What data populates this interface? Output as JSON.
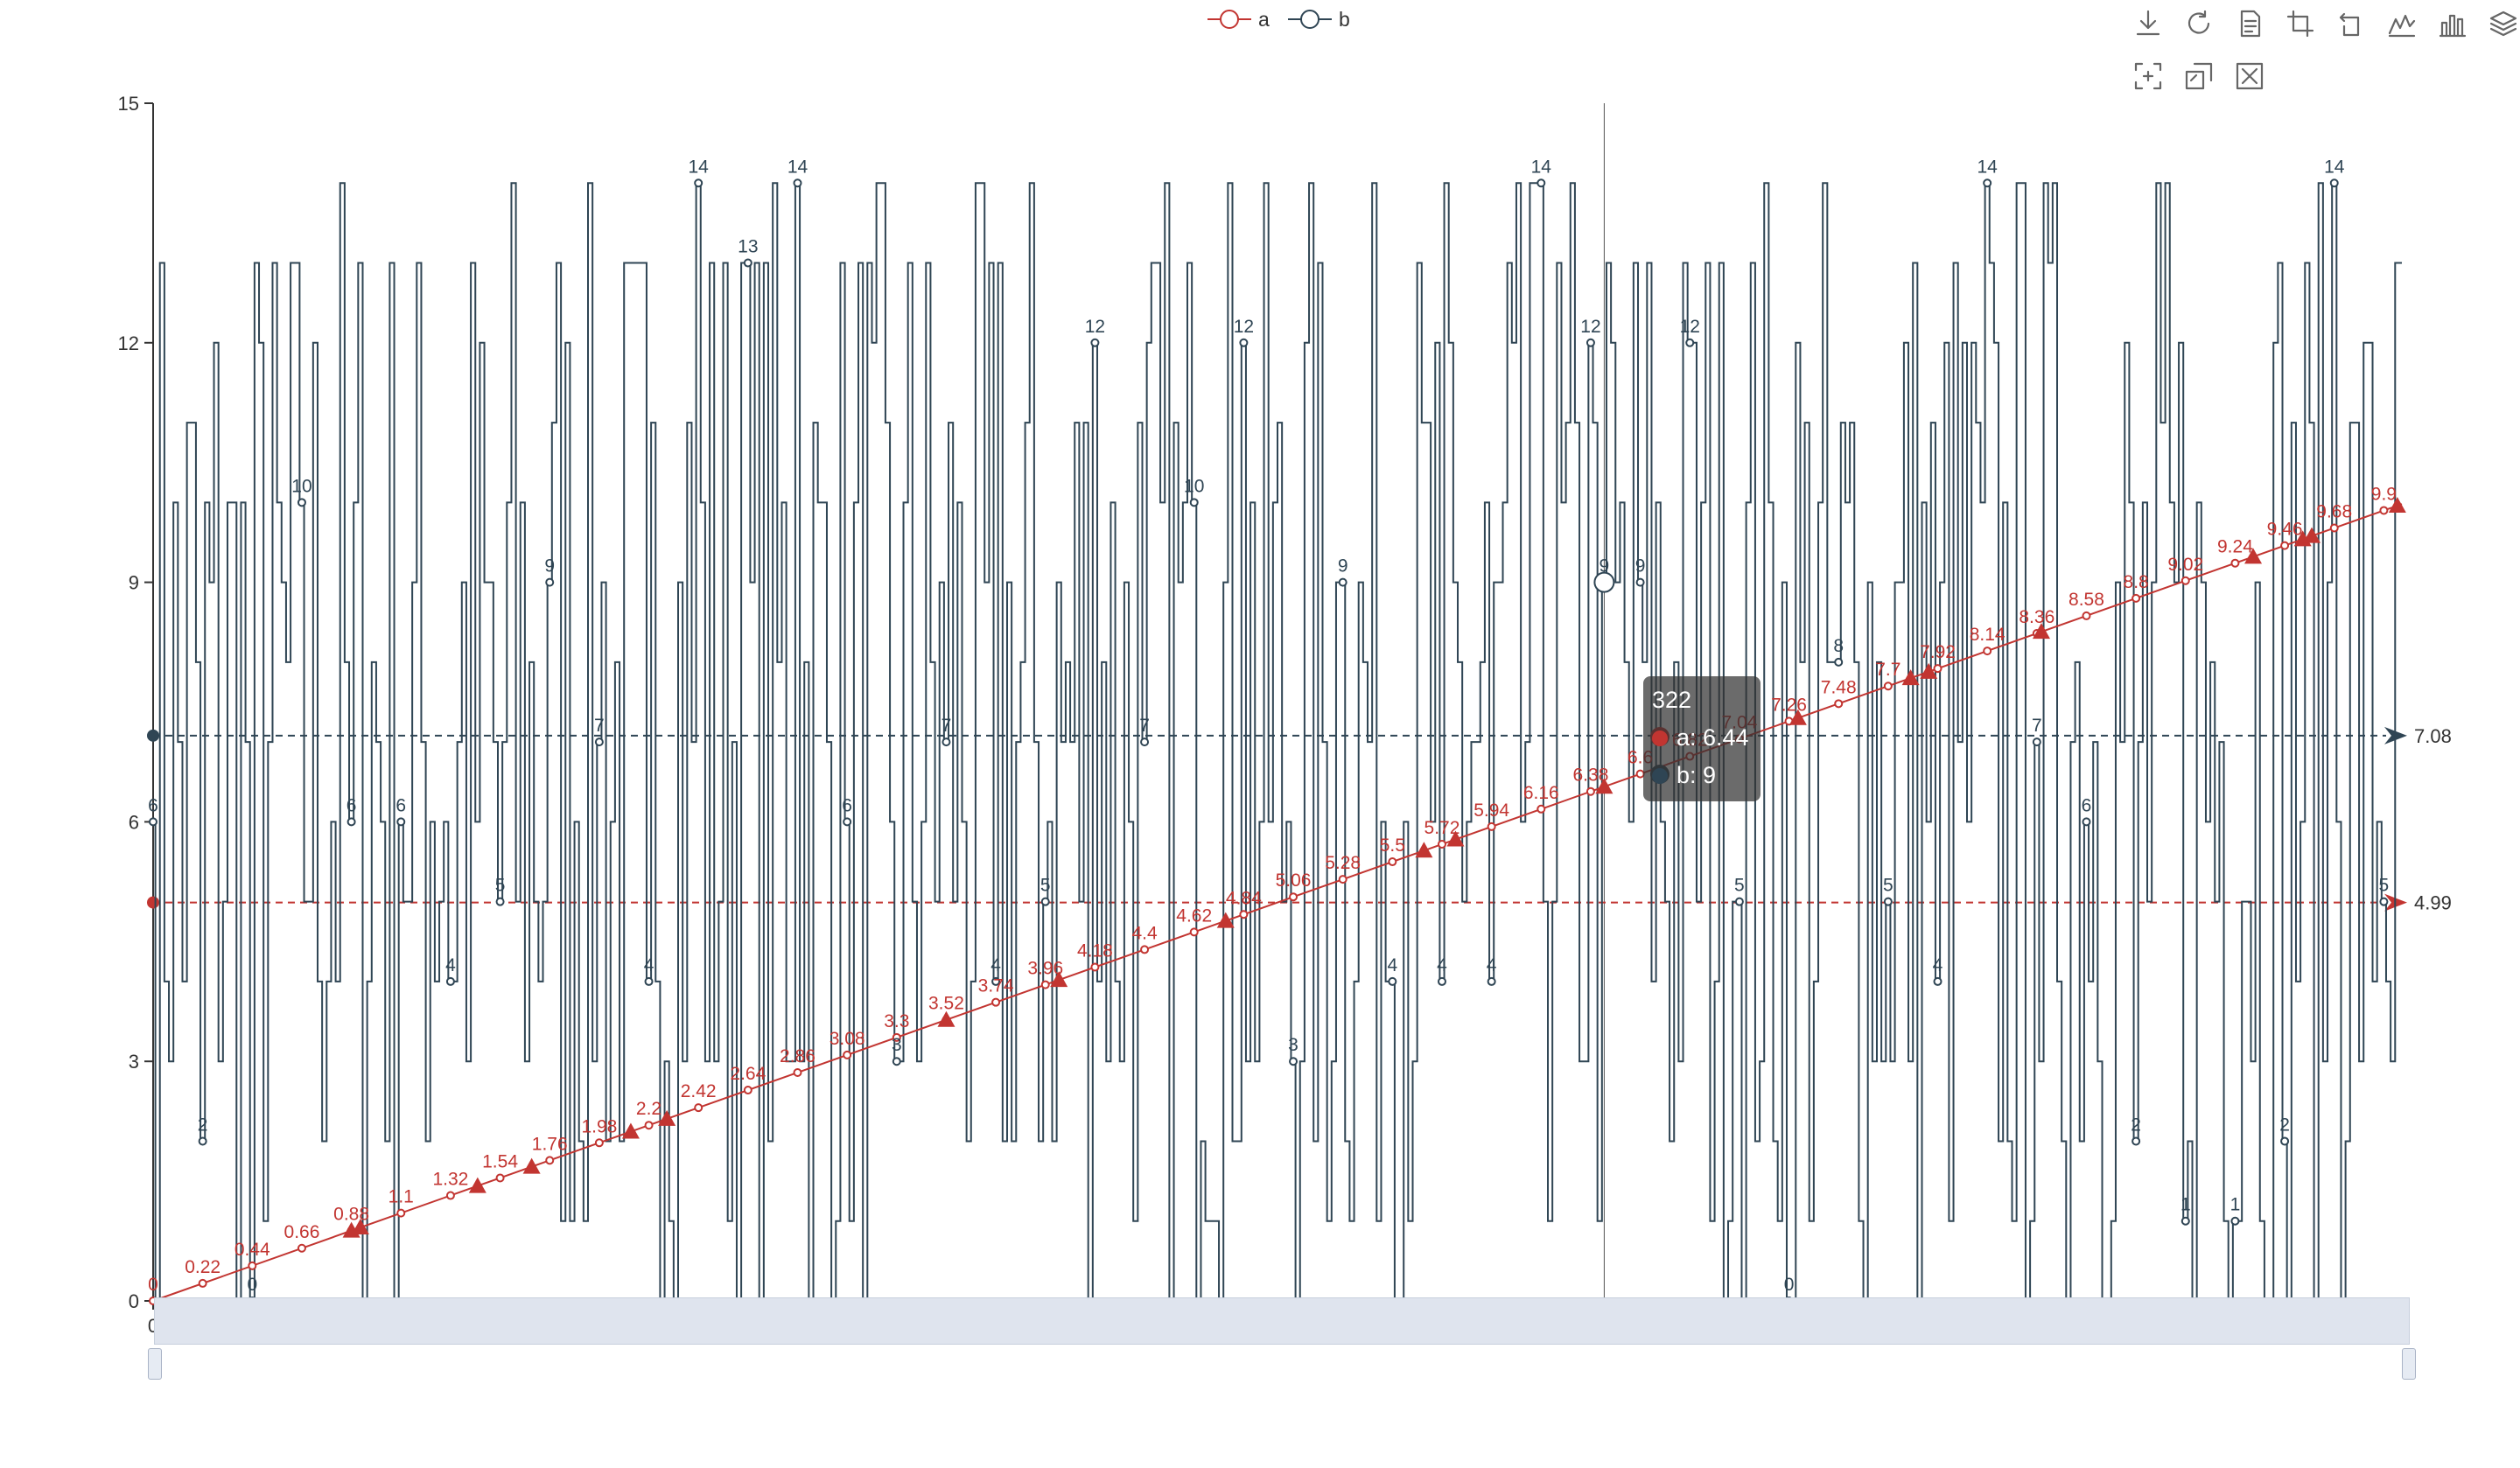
{
  "legend": {
    "items": [
      {
        "name": "a",
        "color": "#c23531",
        "icon": "circle-line-icon"
      },
      {
        "name": "b",
        "color": "#2f4554",
        "icon": "circle-line-icon"
      }
    ]
  },
  "toolbox": {
    "icons": [
      "download-icon",
      "restore-icon",
      "data-view-icon",
      "line-view-icon",
      "bar-view-icon",
      "line-chart-icon",
      "bar-chart-icon",
      "stack-icon",
      "zoom-icon",
      "zoom-back-icon",
      "clear-icon"
    ]
  },
  "tooltip": {
    "title": "322",
    "rows": [
      {
        "label": "a: 6.44",
        "color": "#c23531"
      },
      {
        "label": "b: 9",
        "color": "#2f4554"
      }
    ]
  },
  "chart_data": {
    "type": "line",
    "title": "",
    "xlabel": "",
    "ylabel": "",
    "x": {
      "start": 0,
      "end": 499,
      "tick_step": 11
    },
    "ylim": [
      0,
      15
    ],
    "y_ticks": [
      0,
      3,
      6,
      9,
      12,
      15
    ],
    "grid": false,
    "legend_position": "top-center",
    "series": [
      {
        "name": "a",
        "color": "#c23531",
        "formula": "a = x * 0.02",
        "values_at_labels": [
          0,
          0.22,
          0.44,
          0.66,
          0.88,
          1.1,
          1.32,
          1.54,
          1.76,
          1.98,
          2.2,
          2.42,
          2.64,
          2.86,
          3.08,
          3.3,
          3.52,
          3.74,
          3.96,
          4.18,
          4.4,
          4.62,
          4.84,
          5.06,
          5.28,
          5.5,
          5.72,
          5.94,
          6.16,
          6.38,
          6.6,
          6.82,
          7.04,
          7.26,
          7.48,
          7.7,
          7.92,
          8.14,
          8.36,
          8.58,
          8.8,
          9.02,
          9.24,
          9.46,
          9.68,
          9.9
        ],
        "mark_points_x": [
          44,
          46,
          72,
          84,
          106,
          114,
          176,
          201,
          238,
          282,
          289,
          322,
          365,
          390,
          394,
          419,
          466,
          477,
          479,
          498
        ],
        "mark_line_average": 4.99
      },
      {
        "name": "b",
        "color": "#2f4554",
        "labeled_points": [
          {
            "x": 0,
            "y": 6
          },
          {
            "x": 11,
            "y": 2
          },
          {
            "x": 22,
            "y": 0
          },
          {
            "x": 33,
            "y": 10
          },
          {
            "x": 44,
            "y": 6
          },
          {
            "x": 55,
            "y": 6
          },
          {
            "x": 66,
            "y": 4
          },
          {
            "x": 77,
            "y": 5
          },
          {
            "x": 88,
            "y": 9
          },
          {
            "x": 99,
            "y": 7
          },
          {
            "x": 110,
            "y": 4
          },
          {
            "x": 121,
            "y": 14
          },
          {
            "x": 132,
            "y": 13
          },
          {
            "x": 143,
            "y": 14
          },
          {
            "x": 154,
            "y": 6
          },
          {
            "x": 165,
            "y": 3
          },
          {
            "x": 176,
            "y": 7
          },
          {
            "x": 187,
            "y": 4
          },
          {
            "x": 198,
            "y": 5
          },
          {
            "x": 209,
            "y": 12
          },
          {
            "x": 220,
            "y": 7
          },
          {
            "x": 231,
            "y": 10
          },
          {
            "x": 242,
            "y": 12
          },
          {
            "x": 253,
            "y": 3
          },
          {
            "x": 264,
            "y": 9
          },
          {
            "x": 275,
            "y": 4
          },
          {
            "x": 286,
            "y": 4
          },
          {
            "x": 297,
            "y": 4
          },
          {
            "x": 308,
            "y": 14
          },
          {
            "x": 319,
            "y": 12
          },
          {
            "x": 322,
            "y": 9
          },
          {
            "x": 330,
            "y": 9
          },
          {
            "x": 341,
            "y": 12
          },
          {
            "x": 352,
            "y": 5
          },
          {
            "x": 363,
            "y": 0
          },
          {
            "x": 374,
            "y": 8
          },
          {
            "x": 385,
            "y": 5
          },
          {
            "x": 396,
            "y": 4
          },
          {
            "x": 407,
            "y": 14
          },
          {
            "x": 418,
            "y": 7
          },
          {
            "x": 429,
            "y": 6
          },
          {
            "x": 440,
            "y": 2
          },
          {
            "x": 451,
            "y": 1
          },
          {
            "x": 462,
            "y": 1
          },
          {
            "x": 473,
            "y": 2
          },
          {
            "x": 484,
            "y": 14
          },
          {
            "x": 495,
            "y": 5
          }
        ],
        "mark_line_average": 7.08
      }
    ],
    "hover_x": 322
  }
}
